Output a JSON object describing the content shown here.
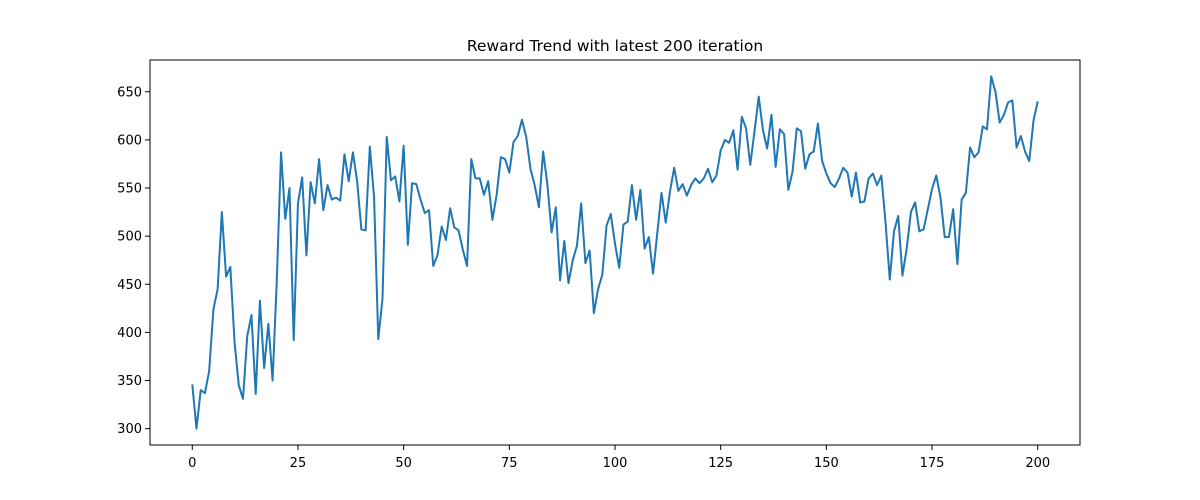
{
  "chart_data": {
    "type": "line",
    "title": "Reward Trend with latest 200 iteration",
    "xlabel": "",
    "ylabel": "",
    "xlim": [
      -10,
      210
    ],
    "ylim": [
      283,
      683
    ],
    "xticks": [
      0,
      25,
      50,
      75,
      100,
      125,
      150,
      175,
      200
    ],
    "yticks": [
      300,
      350,
      400,
      450,
      500,
      550,
      600,
      650
    ],
    "grid": false,
    "line_color": "#1f77b4",
    "series": [
      {
        "x": [
          0,
          1,
          2,
          3,
          4,
          5,
          6,
          7,
          8,
          9,
          10,
          11,
          12,
          13,
          14,
          15,
          16,
          17,
          18,
          19,
          20,
          21,
          22,
          23,
          24,
          25,
          26,
          27,
          28,
          29,
          30,
          31,
          32,
          33,
          34,
          35,
          36,
          37,
          38,
          39,
          40,
          41,
          42,
          43,
          44,
          45,
          46,
          47,
          48,
          49,
          50,
          51,
          52,
          53,
          54,
          55,
          56,
          57,
          58,
          59,
          60,
          61,
          62,
          63,
          64,
          65,
          66,
          67,
          68,
          69,
          70,
          71,
          72,
          73,
          74,
          75,
          76,
          77,
          78,
          79,
          80,
          81,
          82,
          83,
          84,
          85,
          86,
          87,
          88,
          89,
          90,
          91,
          92,
          93,
          94,
          95,
          96,
          97,
          98,
          99,
          100,
          101,
          102,
          103,
          104,
          105,
          106,
          107,
          108,
          109,
          110,
          111,
          112,
          113,
          114,
          115,
          116,
          117,
          118,
          119,
          120,
          121,
          122,
          123,
          124,
          125,
          126,
          127,
          128,
          129,
          130,
          131,
          132,
          133,
          134,
          135,
          136,
          137,
          138,
          139,
          140,
          141,
          142,
          143,
          144,
          145,
          146,
          147,
          148,
          149,
          150,
          151,
          152,
          153,
          154,
          155,
          156,
          157,
          158,
          159,
          160,
          161,
          162,
          163,
          164,
          165,
          166,
          167,
          168,
          169,
          170,
          171,
          172,
          173,
          174,
          175,
          176,
          177,
          178,
          179,
          180,
          181,
          182,
          183,
          184,
          185,
          186,
          187,
          188,
          189,
          190,
          191,
          192,
          193,
          194,
          195,
          196,
          197,
          198,
          199,
          200
        ],
        "values": [
          346,
          300,
          340,
          337,
          360,
          424,
          445,
          525,
          458,
          468,
          390,
          345,
          331,
          396,
          418,
          336,
          433,
          363,
          409,
          350,
          455,
          587,
          518,
          550,
          392,
          534,
          561,
          480,
          556,
          534,
          580,
          527,
          553,
          538,
          540,
          537,
          585,
          557,
          587,
          557,
          507,
          506,
          593,
          541,
          393,
          435,
          603,
          558,
          562,
          536,
          594,
          491,
          555,
          554,
          538,
          524,
          527,
          469,
          480,
          510,
          496,
          529,
          509,
          506,
          486,
          469,
          580,
          560,
          560,
          543,
          557,
          517,
          543,
          582,
          580,
          566,
          598,
          604,
          621,
          603,
          570,
          553,
          530,
          588,
          554,
          504,
          530,
          454,
          495,
          451,
          475,
          490,
          534,
          472,
          485,
          420,
          445,
          460,
          511,
          523,
          492,
          467,
          512,
          515,
          553,
          517,
          548,
          487,
          499,
          461,
          503,
          545,
          514,
          546,
          571,
          547,
          554,
          542,
          553,
          560,
          555,
          560,
          570,
          556,
          563,
          589,
          600,
          597,
          610,
          569,
          624,
          612,
          574,
          609,
          645,
          610,
          591,
          626,
          572,
          611,
          606,
          548,
          567,
          612,
          609,
          570,
          585,
          588,
          617,
          578,
          565,
          555,
          551,
          560,
          571,
          566,
          541,
          566,
          535,
          536,
          560,
          565,
          553,
          563,
          514,
          455,
          505,
          521,
          459,
          487,
          525,
          535,
          505,
          507,
          528,
          549,
          563,
          540,
          499,
          499,
          528,
          471,
          538,
          545,
          592,
          582,
          587,
          614,
          611,
          666,
          650,
          618,
          626,
          639,
          641,
          592,
          604,
          588,
          578,
          620,
          640
        ]
      }
    ]
  }
}
